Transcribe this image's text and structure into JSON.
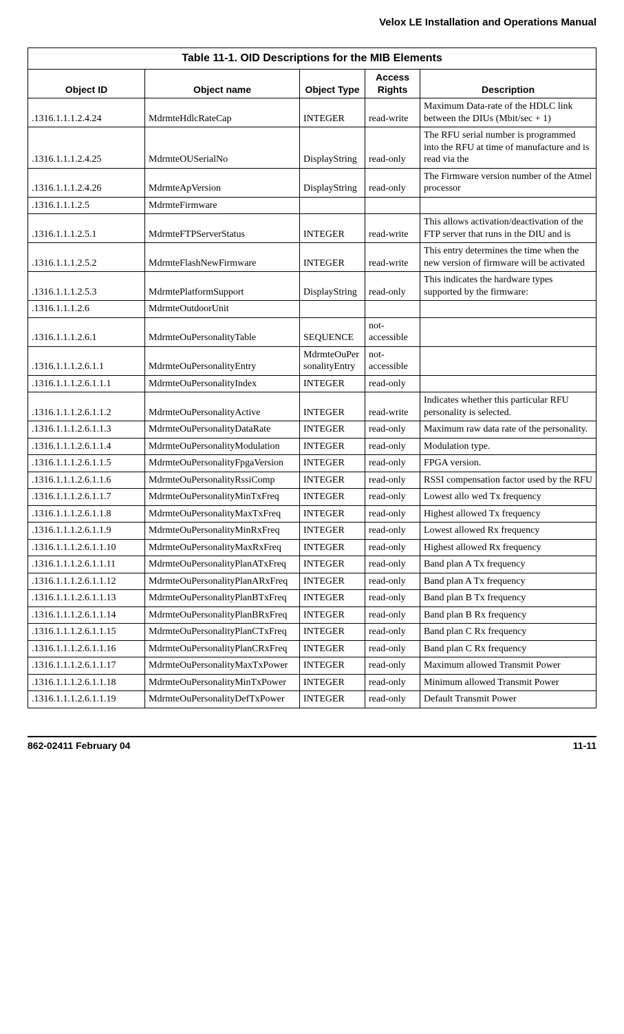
{
  "header": {
    "title": "Velox LE Installation and Operations Manual"
  },
  "table": {
    "caption": "Table 11-1.  OID Descriptions for the MIB Elements",
    "columns": [
      "Object ID",
      "Object name",
      "Object Type",
      "Access Rights",
      "Description"
    ],
    "rows": [
      [
        ".1316.1.1.1.2.4.24",
        "MdrmteHdlcRateCap",
        "INTEGER",
        "read-write",
        "Maximum Data-rate of the HDLC link between the DIUs (Mbit/sec + 1)"
      ],
      [
        ".1316.1.1.1.2.4.25",
        "MdrmteOUSerialNo",
        "DisplayString",
        "read-only",
        "The RFU serial number is programmed into the RFU at time of manufacture and is read via the"
      ],
      [
        ".1316.1.1.1.2.4.26",
        "MdrmteApVersion",
        "DisplayString",
        "read-only",
        "The Firmware version number of the Atmel processor"
      ],
      [
        ".1316.1.1.1.2.5",
        "MdrmteFirmware",
        "",
        "",
        ""
      ],
      [
        ".1316.1.1.1.2.5.1",
        "MdrmteFTPServerStatus",
        "INTEGER",
        "read-write",
        "This allows activation/deactivation of the FTP server that runs in the DIU and is"
      ],
      [
        ".1316.1.1.1.2.5.2",
        "MdrmteFlashNewFirmware",
        "INTEGER",
        "read-write",
        "This entry determines the time when the new version of firmware will be activated"
      ],
      [
        ".1316.1.1.1.2.5.3",
        "MdrmtePlatformSupport",
        "DisplayString",
        "read-only",
        "This indicates the hardware types supported by the firmware:"
      ],
      [
        ".1316.1.1.1.2.6",
        "MdrmteOutdoorUnit",
        "",
        "",
        ""
      ],
      [
        ".1316.1.1.1.2.6.1",
        "MdrmteOuPersonalityTable",
        "SEQUENCE",
        "not-accessible",
        ""
      ],
      [
        ".1316.1.1.1.2.6.1.1",
        "MdrmteOuPersonalityEntry",
        "MdrmteOuPersonalityEntry",
        "not-accessible",
        ""
      ],
      [
        ".1316.1.1.1.2.6.1.1.1",
        "MdrmteOuPersonalityIndex",
        "INTEGER",
        "read-only",
        ""
      ],
      [
        ".1316.1.1.1.2.6.1.1.2",
        "MdrmteOuPersonalityActive",
        "INTEGER",
        "read-write",
        "Indicates whether this particular RFU personality is selected."
      ],
      [
        ".1316.1.1.1.2.6.1.1.3",
        "MdrmteOuPersonalityDataRate",
        "INTEGER",
        "read-only",
        "Maximum raw data rate of the personality."
      ],
      [
        ".1316.1.1.1.2.6.1.1.4",
        "MdrmteOuPersonalityModulation",
        "INTEGER",
        "read-only",
        "Modulation type."
      ],
      [
        ".1316.1.1.1.2.6.1.1.5",
        "MdrmteOuPersonalityFpgaVersion",
        "INTEGER",
        "read-only",
        "FPGA version."
      ],
      [
        ".1316.1.1.1.2.6.1.1.6",
        "MdrmteOuPersonalityRssiComp",
        "INTEGER",
        "read-only",
        "RSSI compensation factor used by the RFU"
      ],
      [
        ".1316.1.1.1.2.6.1.1.7",
        "MdrmteOuPersonalityMinTxFreq",
        "INTEGER",
        "read-only",
        "Lowest allo wed Tx frequency"
      ],
      [
        ".1316.1.1.1.2.6.1.1.8",
        "MdrmteOuPersonalityMaxTxFreq",
        "INTEGER",
        "read-only",
        "Highest allowed Tx frequency"
      ],
      [
        ".1316.1.1.1.2.6.1.1.9",
        "MdrmteOuPersonalityMinRxFreq",
        "INTEGER",
        "read-only",
        "Lowest allowed Rx frequency"
      ],
      [
        ".1316.1.1.1.2.6.1.1.10",
        "MdrmteOuPersonalityMaxRxFreq",
        "INTEGER",
        "read-only",
        "Highest allowed Rx frequency"
      ],
      [
        ".1316.1.1.1.2.6.1.1.11",
        "MdrmteOuPersonalityPlanATxFreq",
        "INTEGER",
        "read-only",
        "Band plan A Tx frequency"
      ],
      [
        ".1316.1.1.1.2.6.1.1.12",
        "MdrmteOuPersonalityPlanARxFreq",
        "INTEGER",
        "read-only",
        "Band plan A Tx frequency"
      ],
      [
        ".1316.1.1.1.2.6.1.1.13",
        "MdrmteOuPersonalityPlanBTxFreq",
        "INTEGER",
        "read-only",
        "Band plan B Tx frequency"
      ],
      [
        ".1316.1.1.1.2.6.1.1.14",
        "MdrmteOuPersonalityPlanBRxFreq",
        "INTEGER",
        "read-only",
        "Band plan B Rx frequency"
      ],
      [
        ".1316.1.1.1.2.6.1.1.15",
        "MdrmteOuPersonalityPlanCTxFreq",
        "INTEGER",
        "read-only",
        "Band plan C Rx frequency"
      ],
      [
        ".1316.1.1.1.2.6.1.1.16",
        "MdrmteOuPersonalityPlanCRxFreq",
        "INTEGER",
        "read-only",
        "Band plan C Rx frequency"
      ],
      [
        ".1316.1.1.1.2.6.1.1.17",
        "MdrmteOuPersonalityMaxTxPower",
        "INTEGER",
        "read-only",
        "Maximum allowed Transmit Power"
      ],
      [
        ".1316.1.1.1.2.6.1.1.18",
        "MdrmteOuPersonalityMinTxPower",
        "INTEGER",
        "read-only",
        "Minimum allowed Transmit Power"
      ],
      [
        ".1316.1.1.1.2.6.1.1.19",
        "MdrmteOuPersonalityDefTxPower",
        "INTEGER",
        "read-only",
        "Default Transmit Power"
      ]
    ]
  },
  "footer": {
    "left": "862-02411 February 04",
    "right": "11-11"
  }
}
